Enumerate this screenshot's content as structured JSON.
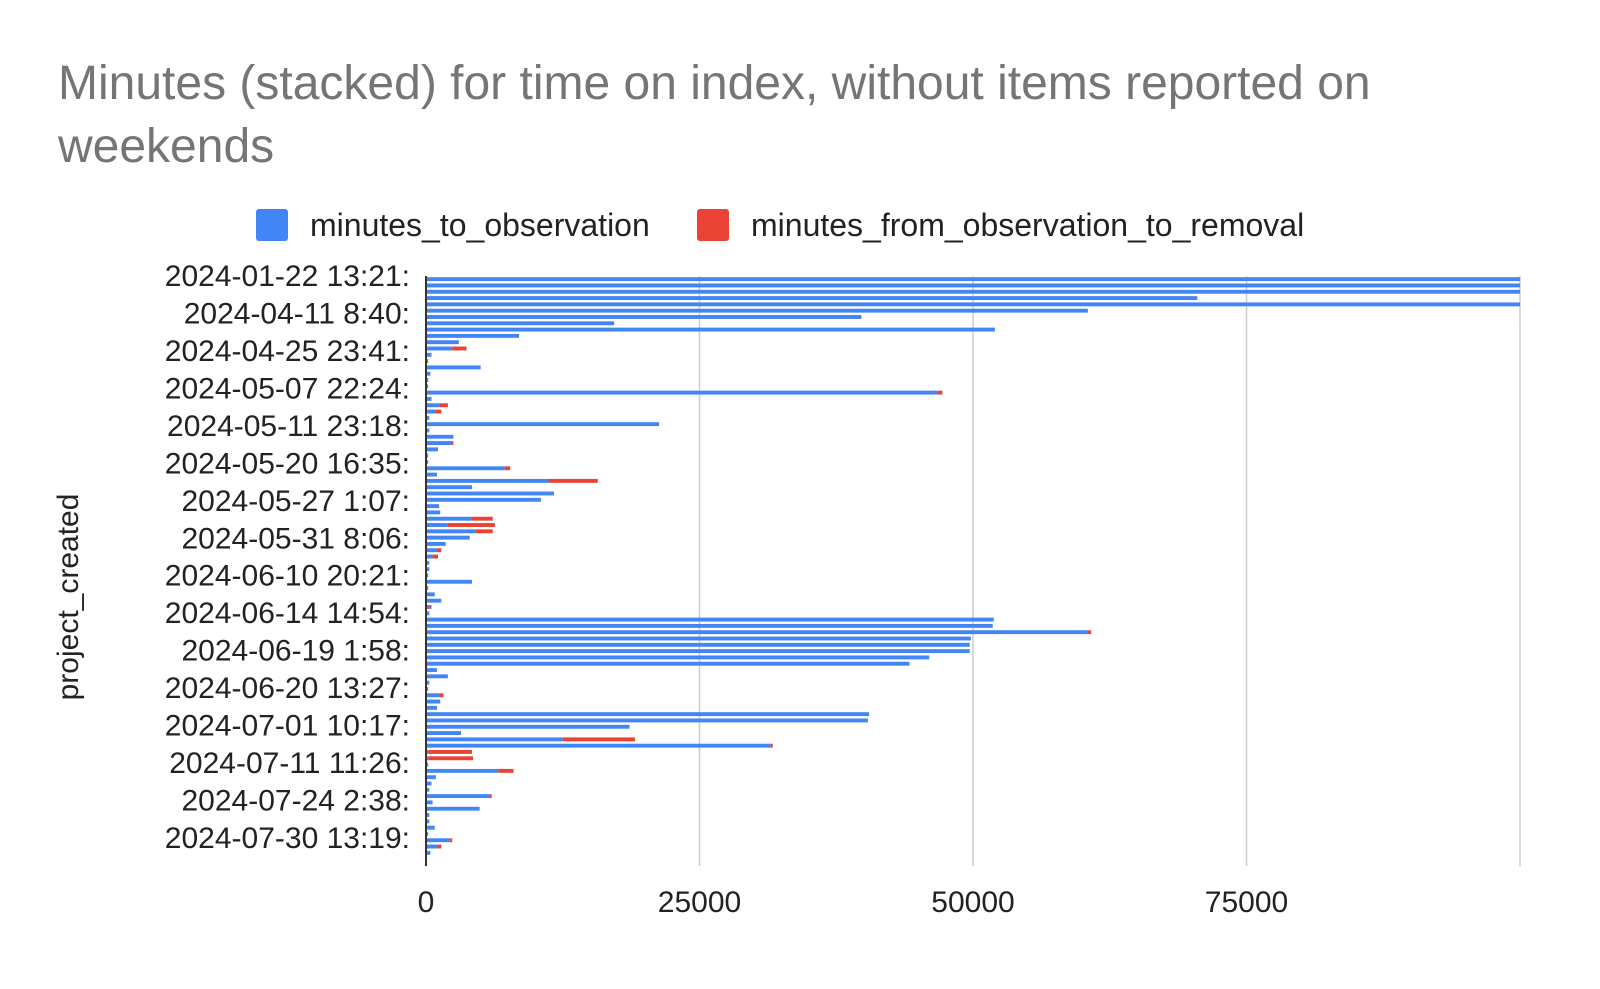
{
  "colors": {
    "minutes_to_observation": "#4285f4",
    "minutes_from_observation_to_removal": "#ea4335",
    "grid": "#cccccc",
    "axis": "#333333",
    "text": "#222222",
    "title": "#757575"
  },
  "chart_data": {
    "type": "bar",
    "orientation": "horizontal",
    "stacked": true,
    "title": "Minutes (stacked) for time on index, without items reported on weekends",
    "xlabel": "",
    "ylabel": "project_created",
    "xlim": [
      0,
      100000
    ],
    "xticks": [
      "0",
      "25000",
      "50000",
      "75000"
    ],
    "xtick_values": [
      0,
      25000,
      50000,
      75000
    ],
    "grid": true,
    "legend_position": "top",
    "y_tick_labels": [
      "2024-01-22 13:21:",
      "2024-04-11 8:40:",
      "2024-04-25 23:41:",
      "2024-05-07 22:24:",
      "2024-05-11 23:18:",
      "2024-05-20 16:35:",
      "2024-05-27 1:07:",
      "2024-05-31 8:06:",
      "2024-06-10 20:21:",
      "2024-06-14 14:54:",
      "2024-06-19 1:58:",
      "2024-06-20 13:27:",
      "2024-07-01 10:17:",
      "2024-07-11 11:26:",
      "2024-07-24 2:38:",
      "2024-07-30 13:19:"
    ],
    "series": [
      {
        "name": "minutes_to_observation",
        "values": [
          100000,
          100000,
          100000,
          70500,
          100000,
          60500,
          39800,
          17200,
          52000,
          8500,
          3000,
          2400,
          500,
          200,
          5000,
          400,
          200,
          200,
          46800,
          500,
          1200,
          900,
          300,
          21300,
          300,
          2500,
          2300,
          1100,
          200,
          200,
          7200,
          1000,
          11200,
          4200,
          11700,
          10500,
          1200,
          1300,
          4200,
          2000,
          4500,
          4000,
          1800,
          1000,
          600,
          300,
          300,
          200,
          4200,
          200,
          800,
          1400,
          300,
          300,
          51900,
          51800,
          60500,
          49800,
          49700,
          49700,
          46000,
          44200,
          1000,
          2000,
          300,
          200,
          1200,
          1300,
          1000,
          40500,
          40400,
          18600,
          3200,
          12500,
          31500,
          200,
          200,
          200,
          6600,
          900,
          500,
          300,
          5800,
          600,
          4900,
          300,
          300,
          800,
          200,
          2200,
          1000,
          400
        ]
      },
      {
        "name": "minutes_from_observation_to_removal",
        "values": [
          0,
          0,
          0,
          0,
          0,
          0,
          0,
          0,
          0,
          0,
          0,
          1300,
          0,
          0,
          0,
          0,
          0,
          0,
          400,
          0,
          800,
          500,
          0,
          0,
          0,
          0,
          200,
          0,
          0,
          0,
          500,
          0,
          4500,
          0,
          0,
          0,
          0,
          0,
          1900,
          4300,
          1600,
          0,
          0,
          400,
          500,
          0,
          0,
          0,
          0,
          0,
          0,
          0,
          200,
          0,
          0,
          0,
          300,
          0,
          0,
          0,
          0,
          0,
          0,
          0,
          0,
          0,
          400,
          0,
          0,
          0,
          0,
          0,
          0,
          6600,
          200,
          4000,
          4100,
          0,
          1400,
          0,
          0,
          0,
          200,
          0,
          0,
          0,
          0,
          0,
          0,
          200,
          400,
          0
        ]
      }
    ]
  }
}
